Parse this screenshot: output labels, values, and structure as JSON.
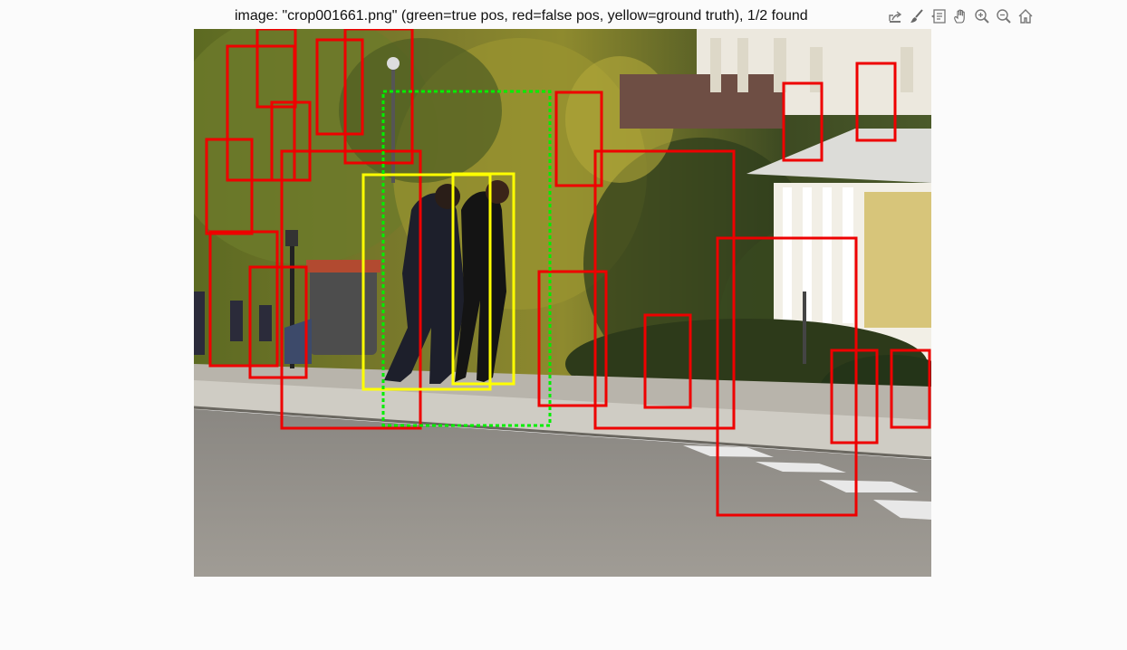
{
  "figure": {
    "title": "image: \"crop001661.png\" (green=true pos, red=false pos, yellow=ground truth), 1/2 found"
  },
  "toolbar": {
    "items": [
      {
        "name": "export-icon"
      },
      {
        "name": "brush-icon"
      },
      {
        "name": "datatip-icon"
      },
      {
        "name": "pan-hand-icon"
      },
      {
        "name": "zoom-in-icon"
      },
      {
        "name": "zoom-out-icon"
      },
      {
        "name": "home-icon"
      }
    ]
  },
  "colors": {
    "false_pos": "#ee0000",
    "true_pos": "#00ee00",
    "ground_truth": "#ffff00"
  },
  "image": {
    "filename": "crop001661.png"
  }
}
